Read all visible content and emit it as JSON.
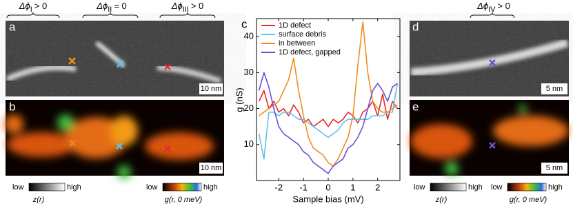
{
  "chart_data": {
    "type": "line",
    "panel_label": "c",
    "x_label": "Sample bias (mV)",
    "y_label": "g (nS)",
    "x": [
      -2.8,
      -2.6,
      -2.4,
      -2.2,
      -2.0,
      -1.8,
      -1.6,
      -1.4,
      -1.2,
      -1.0,
      -0.8,
      -0.6,
      -0.4,
      -0.2,
      0,
      0.2,
      0.4,
      0.6,
      0.8,
      1.0,
      1.2,
      1.4,
      1.6,
      1.8,
      2.0,
      2.2,
      2.4,
      2.6,
      2.8
    ],
    "series": [
      {
        "name": "1D defect",
        "color": "#e8262b",
        "values": [
          22,
          25,
          20,
          22,
          19,
          20,
          18,
          21,
          19,
          16,
          17,
          15,
          16,
          17,
          15,
          17,
          16,
          17,
          19,
          18,
          16,
          19,
          20,
          22,
          18,
          24,
          17,
          22,
          20
        ]
      },
      {
        "name": "surface debris",
        "color": "#5cc3ea",
        "values": [
          13,
          6,
          19,
          19,
          18,
          19,
          19,
          18,
          17,
          17,
          16,
          15,
          14,
          13,
          12,
          13,
          14,
          16,
          17,
          17,
          17,
          17,
          17,
          18,
          18,
          18,
          19,
          19,
          27
        ]
      },
      {
        "name": "in between",
        "color": "#f28c1e",
        "values": [
          18,
          19,
          20,
          21,
          22,
          25,
          28,
          34,
          25,
          18,
          12,
          9,
          8,
          7,
          5,
          4,
          6,
          9,
          12,
          18,
          32,
          44,
          30,
          22,
          20,
          19,
          19,
          20,
          21
        ]
      },
      {
        "name": "1D defect, gapped",
        "color": "#6a4fd6",
        "values": [
          25,
          30,
          26,
          20,
          15,
          13,
          12,
          11,
          10,
          8,
          7,
          5,
          4,
          3,
          2,
          4,
          5,
          6,
          9,
          10,
          12,
          15,
          20,
          25,
          27,
          25,
          22,
          26,
          27
        ]
      }
    ],
    "xlim": [
      -2.9,
      2.9
    ],
    "ylim": [
      0,
      45
    ],
    "xticks": [
      -2,
      -1,
      0,
      1,
      2
    ],
    "yticks": [
      10,
      20,
      30,
      40
    ]
  },
  "phase_labels": [
    {
      "symbol": "Δϕ",
      "subscript": "I",
      "relation": "> 0"
    },
    {
      "symbol": "Δϕ",
      "subscript": "II",
      "relation": "= 0"
    },
    {
      "symbol": "Δϕ",
      "subscript": "III",
      "relation": "> 0"
    },
    {
      "symbol": "Δϕ",
      "subscript": "IV",
      "relation": "> 0"
    }
  ],
  "panels": {
    "a": {
      "label": "a",
      "scale": "10 nm"
    },
    "b": {
      "label": "b",
      "scale": "10 nm"
    },
    "d": {
      "label": "d",
      "scale": "5 nm"
    },
    "e": {
      "label": "e",
      "scale": "5 nm"
    }
  },
  "colorbars": [
    {
      "low": "low",
      "high": "high",
      "label": "z(r)"
    },
    {
      "low": "low",
      "high": "high",
      "label": "g(r, 0 meV)"
    },
    {
      "low": "low",
      "high": "high",
      "label": "z(r)"
    },
    {
      "low": "low",
      "high": "high",
      "label": "g(r, 0 meV)"
    }
  ]
}
